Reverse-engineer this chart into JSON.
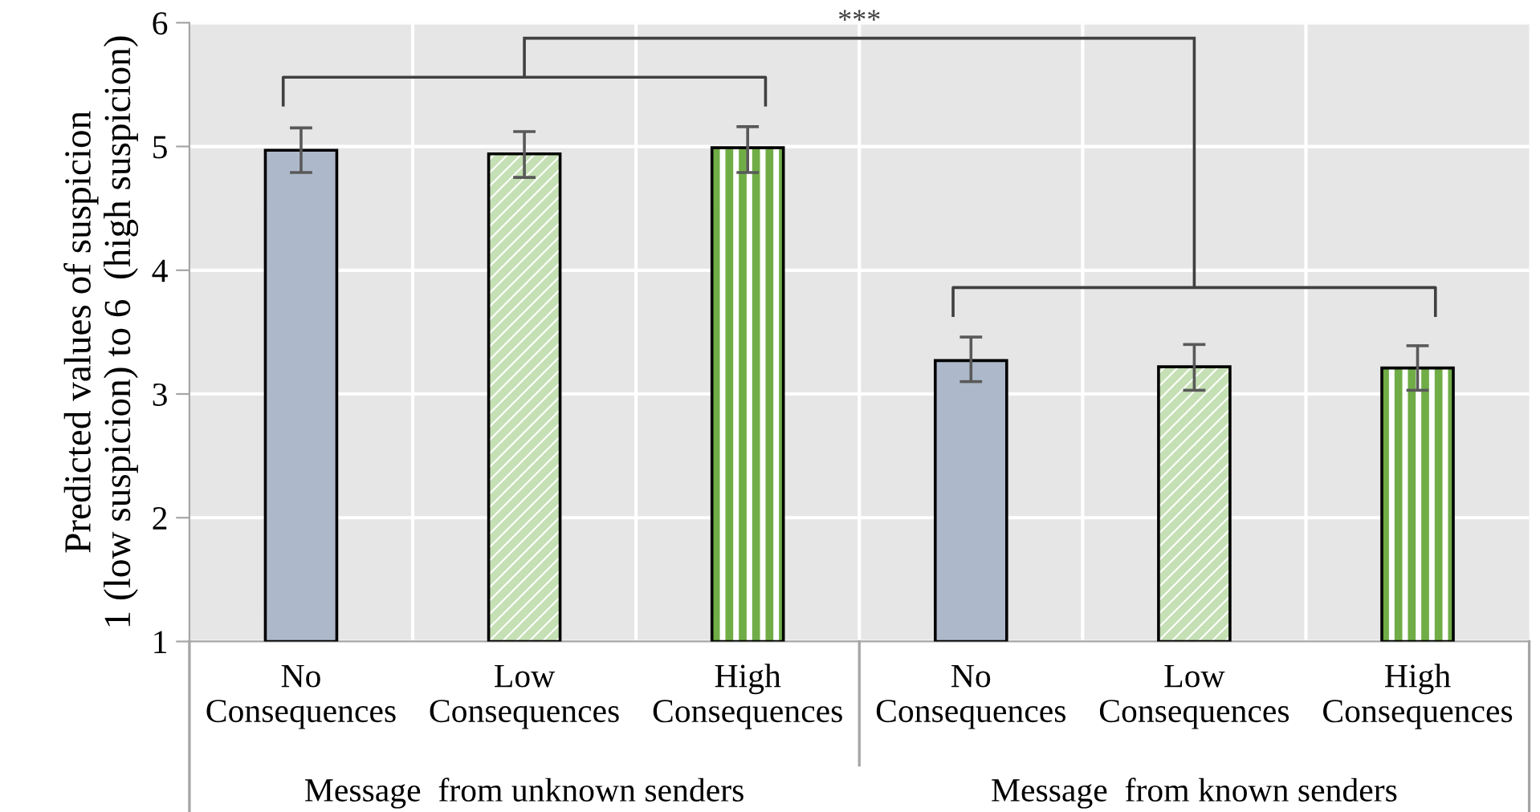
{
  "chart_data": {
    "type": "bar",
    "ylabel": "Predicted values of suspicion\n1 (low suspicion) to 6  (high suspicion)",
    "categories": [
      "No\nConsequences",
      "Low\nConsequences",
      "High\nConsequences",
      "No\nConsequences",
      "Low\nConsequences",
      "High\nConsequences"
    ],
    "values": [
      4.97,
      4.94,
      4.99,
      3.27,
      3.22,
      3.21
    ],
    "errors": [
      [
        4.79,
        5.15
      ],
      [
        4.75,
        5.12
      ],
      [
        4.79,
        5.16
      ],
      [
        3.1,
        3.46
      ],
      [
        3.03,
        3.4
      ],
      [
        3.03,
        3.39
      ]
    ],
    "colors": [
      "#adb9ca",
      "#c5e0b4",
      "#70ad47",
      "#adb9ca",
      "#c5e0b4",
      "#70ad47"
    ],
    "ylim": [
      1,
      6
    ],
    "yticks": [
      1,
      2,
      3,
      4,
      5,
      6
    ],
    "grid": true,
    "annotations": [
      "Message  from unknown senders",
      "Message  from known senders",
      "***"
    ]
  }
}
